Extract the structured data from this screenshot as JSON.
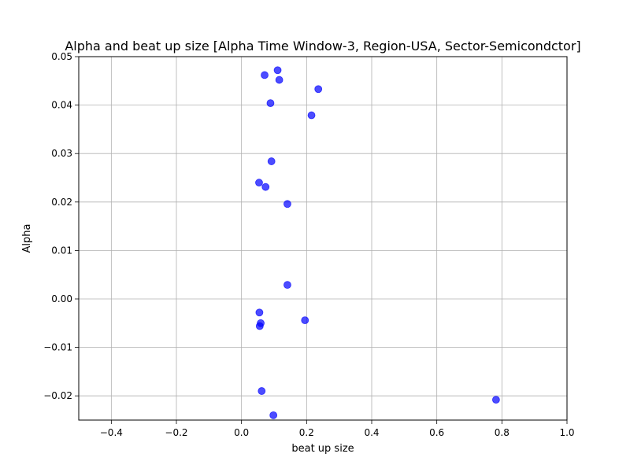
{
  "chart_data": {
    "type": "scatter",
    "title": "Alpha and beat up size [Alpha Time Window-3, Region-USA, Sector-Semicondctor]",
    "xlabel": "beat up size",
    "ylabel": "Alpha",
    "xlim": [
      -0.5,
      1.0
    ],
    "ylim": [
      -0.025,
      0.05
    ],
    "xticks": [
      -0.4,
      -0.2,
      0.0,
      0.2,
      0.4,
      0.6,
      0.8,
      1.0
    ],
    "xtick_labels": [
      "−0.4",
      "−0.2",
      "0.0",
      "0.2",
      "0.4",
      "0.6",
      "0.8",
      "1.0"
    ],
    "yticks": [
      -0.02,
      -0.01,
      0.0,
      0.01,
      0.02,
      0.03,
      0.04,
      0.05
    ],
    "ytick_labels": [
      "−0.02",
      "−0.01",
      "0.00",
      "0.01",
      "0.02",
      "0.03",
      "0.04",
      "0.05"
    ],
    "grid": true,
    "marker_color": "#0000ff",
    "marker_alpha": 0.7,
    "points": [
      {
        "x": 0.071,
        "y": 0.0462
      },
      {
        "x": 0.111,
        "y": 0.0472
      },
      {
        "x": 0.116,
        "y": 0.0452
      },
      {
        "x": 0.236,
        "y": 0.0433
      },
      {
        "x": 0.089,
        "y": 0.0404
      },
      {
        "x": 0.215,
        "y": 0.0379
      },
      {
        "x": 0.092,
        "y": 0.0284
      },
      {
        "x": 0.054,
        "y": 0.024
      },
      {
        "x": 0.074,
        "y": 0.0231
      },
      {
        "x": 0.141,
        "y": 0.0196
      },
      {
        "x": 0.141,
        "y": 0.0029
      },
      {
        "x": 0.055,
        "y": -0.0028
      },
      {
        "x": 0.195,
        "y": -0.0044
      },
      {
        "x": 0.059,
        "y": -0.005
      },
      {
        "x": 0.056,
        "y": -0.0056
      },
      {
        "x": 0.062,
        "y": -0.019
      },
      {
        "x": 0.782,
        "y": -0.0208
      },
      {
        "x": 0.098,
        "y": -0.024
      }
    ]
  }
}
